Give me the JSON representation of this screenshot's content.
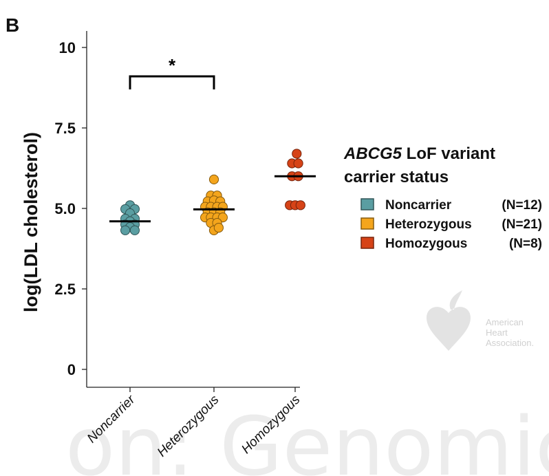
{
  "panel_label": "B",
  "background_text": "on: Genomic",
  "watermark": {
    "text_lines": [
      "American",
      "Heart",
      "Association."
    ],
    "color": "#d6d6d6"
  },
  "chart_data": {
    "type": "scatter",
    "title": "",
    "ylabel": "log(LDL cholesterol)",
    "xlabel": "",
    "categories": [
      "Noncarrier",
      "Heterozygous",
      "Homozygous"
    ],
    "ylim": [
      0,
      10
    ],
    "yticks": [
      0,
      2.5,
      5,
      7.5,
      10
    ],
    "ytick_labels": [
      "0",
      "2.5",
      "5.0",
      "7.5",
      "10"
    ],
    "grid": false,
    "legend": {
      "title_italic": "ABCG5",
      "title_rest": " LoF variant",
      "title_line2": "carrier status",
      "placement": "right",
      "entries": [
        {
          "name": "Noncarrier",
          "n": "(N=12)"
        },
        {
          "name": "Heterozygous",
          "n": "(N=21)"
        },
        {
          "name": "Homozygous",
          "n": "(N=8)"
        }
      ]
    },
    "significance": {
      "between": [
        "Noncarrier",
        "Heterozygous"
      ],
      "label": "*"
    },
    "series": [
      {
        "name": "Noncarrier",
        "color": "#5a9ea2",
        "median": 4.6,
        "points": [
          {
            "x": 0,
            "y": 5.1
          },
          {
            "x": -0.15,
            "y": 4.98
          },
          {
            "x": 0.15,
            "y": 4.98
          },
          {
            "x": 0,
            "y": 4.85
          },
          {
            "x": -0.15,
            "y": 4.68
          },
          {
            "x": 0.15,
            "y": 4.68
          },
          {
            "x": 0,
            "y": 4.6
          },
          {
            "x": -0.15,
            "y": 4.5
          },
          {
            "x": 0.15,
            "y": 4.5
          },
          {
            "x": 0,
            "y": 4.42
          },
          {
            "x": -0.15,
            "y": 4.32
          },
          {
            "x": 0.15,
            "y": 4.32
          }
        ]
      },
      {
        "name": "Heterozygous",
        "color": "#f4a51c",
        "median": 4.97,
        "points": [
          {
            "x": 0,
            "y": 5.9
          },
          {
            "x": -0.1,
            "y": 5.4
          },
          {
            "x": 0.1,
            "y": 5.4
          },
          {
            "x": -0.2,
            "y": 5.22
          },
          {
            "x": 0,
            "y": 5.25
          },
          {
            "x": 0.2,
            "y": 5.22
          },
          {
            "x": -0.28,
            "y": 5.05
          },
          {
            "x": -0.1,
            "y": 5.05
          },
          {
            "x": 0.1,
            "y": 5.05
          },
          {
            "x": 0.28,
            "y": 5.05
          },
          {
            "x": -0.2,
            "y": 4.88
          },
          {
            "x": 0,
            "y": 4.88
          },
          {
            "x": 0.2,
            "y": 4.88
          },
          {
            "x": -0.28,
            "y": 4.72
          },
          {
            "x": -0.1,
            "y": 4.72
          },
          {
            "x": 0.1,
            "y": 4.72
          },
          {
            "x": 0.28,
            "y": 4.72
          },
          {
            "x": -0.1,
            "y": 4.55
          },
          {
            "x": 0.1,
            "y": 4.55
          },
          {
            "x": 0,
            "y": 4.32
          },
          {
            "x": 0.15,
            "y": 4.4
          }
        ]
      },
      {
        "name": "Homozygous",
        "color": "#d64317",
        "median": 6.0,
        "points": [
          {
            "x": 0.05,
            "y": 6.7
          },
          {
            "x": -0.1,
            "y": 6.4
          },
          {
            "x": 0.1,
            "y": 6.4
          },
          {
            "x": -0.1,
            "y": 6.0
          },
          {
            "x": 0.1,
            "y": 6.0
          },
          {
            "x": -0.17,
            "y": 5.1
          },
          {
            "x": 0,
            "y": 5.1
          },
          {
            "x": 0.17,
            "y": 5.1
          }
        ]
      }
    ]
  }
}
